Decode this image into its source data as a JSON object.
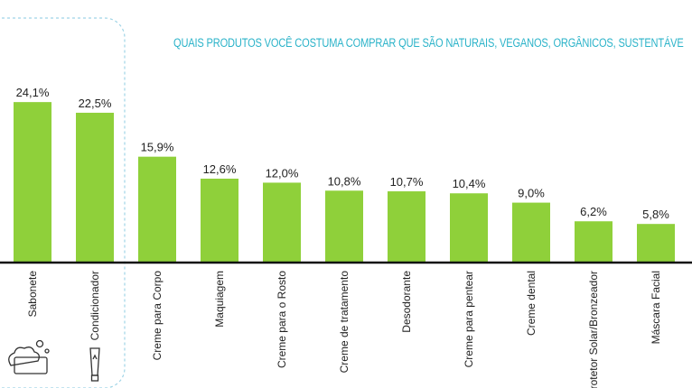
{
  "colors": {
    "bar": "#8fd03a",
    "title": "#2bb3c9",
    "axis": "#111111",
    "text": "#222222",
    "highlight_border": "#9fd4e6"
  },
  "chart_data": {
    "type": "bar",
    "title": "QUAIS PRODUTOS VOCÊ COSTUMA COMPRAR QUE SÃO NATURAIS, VEGANOS, ORGÂNICOS, SUSTENTÁVE",
    "categories": [
      "Sabonete",
      "Condicionador",
      "Creme para Corpo",
      "Maquiagem",
      "Creme para o Rosto",
      "Creme de tratamento",
      "Desodorante",
      "Creme para pentear",
      "Creme dental",
      "rotetor Solar/Bronzeador",
      "Máscara Facial"
    ],
    "values": [
      24.1,
      22.5,
      15.9,
      12.6,
      12.0,
      10.8,
      10.7,
      10.4,
      9.0,
      6.2,
      5.8
    ],
    "value_labels": [
      "24,1%",
      "22,5%",
      "15,9%",
      "12,6%",
      "12,0%",
      "10,8%",
      "10,7%",
      "10,4%",
      "9,0%",
      "6,2%",
      "5,8%"
    ],
    "xlabel": "",
    "ylabel": "",
    "ylim": [
      0,
      25
    ],
    "grid": false,
    "highlighted_categories": [
      "Sabonete",
      "Condicionador"
    ]
  },
  "icons": {
    "soap": "soap-icon",
    "conditioner": "conditioner-tube-icon"
  }
}
